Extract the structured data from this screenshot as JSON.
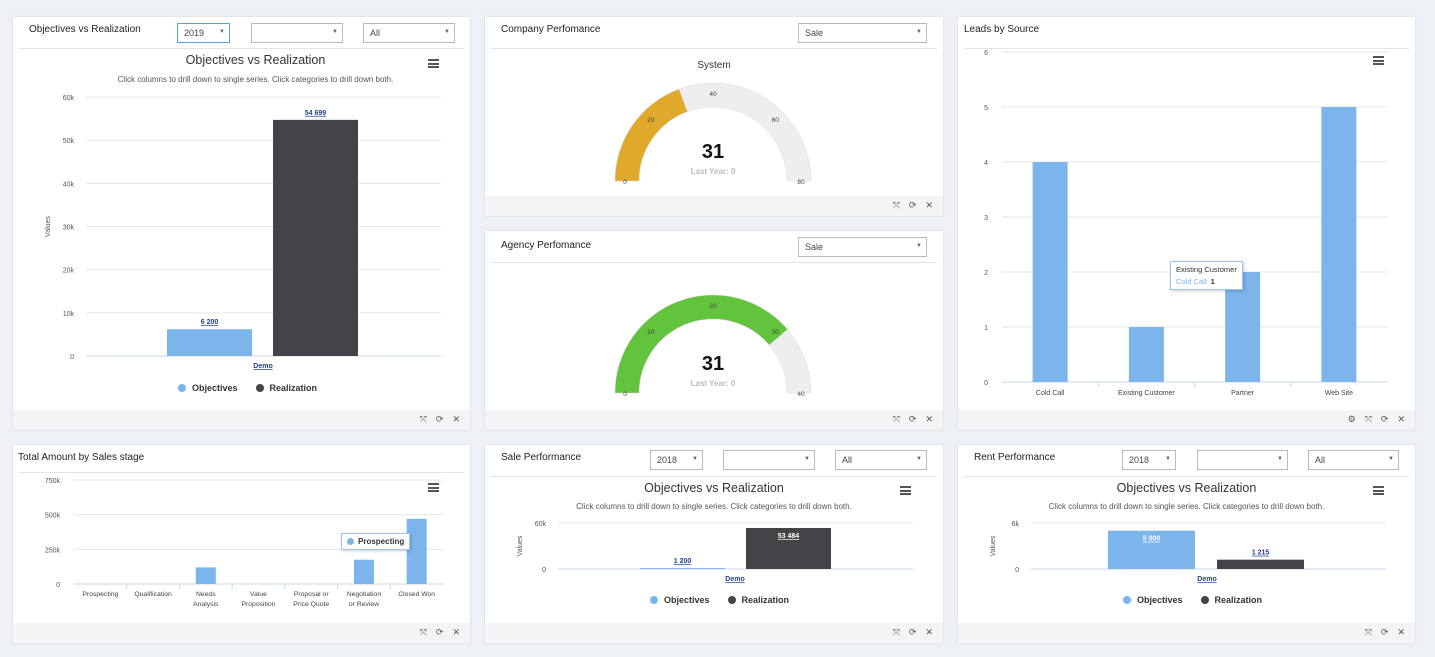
{
  "colors": {
    "objectives": "#7cb5ec",
    "realization": "#434348",
    "gauge_company": "#e0a92c",
    "gauge_agency": "#62c33c",
    "gauge_bg": "#eeeeee",
    "leads_bar": "#7cb5ec"
  },
  "icons": {
    "expand": "expand-icon",
    "refresh": "refresh-icon",
    "close": "close-icon",
    "settings": "gear-icon",
    "menu": "hamburger-menu-icon"
  },
  "footer_icons": {
    "expand": "⤧",
    "refresh": "⟳",
    "close": "✕",
    "settings": "⚙"
  },
  "objectives_panel": {
    "title": "Objectives vs Realization",
    "year": "2019",
    "filter2": "",
    "filter3": "All",
    "chart_title": "Objectives vs Realization",
    "chart_subtitle": "Click columns to drill down to single series. Click categories to drill down both.",
    "ylabel": "Values",
    "yticks": [
      "60k",
      "50k",
      "40k",
      "30k",
      "20k",
      "10k",
      "0"
    ],
    "category": "Demo",
    "legend": [
      "Objectives",
      "Realization"
    ],
    "label_objectives": "6 200",
    "label_realization": "54 699"
  },
  "company_panel": {
    "title": "Company Perfomance",
    "select": "Sale",
    "gauge_title": "System",
    "value": "31",
    "last_year": "Last Year: 0",
    "ticks": [
      "0",
      "20",
      "40",
      "60",
      "80"
    ]
  },
  "agency_panel": {
    "title": "Agency Perfomance",
    "select": "Sale",
    "value": "31",
    "last_year": "Last Year: 0",
    "ticks": [
      "0",
      "10",
      "20",
      "30",
      "40"
    ]
  },
  "leads_panel": {
    "title": "Leads by Source",
    "yticks": [
      "6",
      "5",
      "4",
      "3",
      "2",
      "1",
      "0"
    ],
    "categories": [
      "Cold Call",
      "Existing Customer",
      "Partner",
      "Web Site"
    ],
    "tooltip_title": "Existing Customer",
    "tooltip_series": "Cold Call:",
    "tooltip_value": "1"
  },
  "sales_stage_panel": {
    "title": "Total Amount by Sales stage",
    "yticks": [
      "750k",
      "500k",
      "250k",
      "0"
    ],
    "categories": [
      [
        "Prospecting"
      ],
      [
        "Qualification"
      ],
      [
        "Needs",
        "Analysis"
      ],
      [
        "Value",
        "Proposition"
      ],
      [
        "Proposal or",
        "Price Quote"
      ],
      [
        "Negotiation",
        "or Review"
      ],
      [
        "Closed Won"
      ]
    ],
    "tooltip": "Prospecting"
  },
  "sale_perf_panel": {
    "title": "Sale Performance",
    "year": "2018",
    "filter2": "",
    "filter3": "All",
    "chart_title": "Objectives vs Realization",
    "chart_subtitle": "Click columns to drill down to single series. Click categories to drill down both.",
    "ylabel": "Values",
    "yticks": [
      "60k",
      "0"
    ],
    "category": "Demo",
    "legend": [
      "Objectives",
      "Realization"
    ],
    "label_objectives": "1 200",
    "label_realization": "53 484"
  },
  "rent_perf_panel": {
    "title": "Rent Performance",
    "year": "2018",
    "filter2": "",
    "filter3": "All",
    "chart_title": "Objectives vs Realization",
    "chart_subtitle": "Click columns to drill down to single series. Click categories to drill down both.",
    "ylabel": "Values",
    "yticks": [
      "6k",
      "0"
    ],
    "category": "Demo",
    "legend": [
      "Objectives",
      "Realization"
    ],
    "label_objectives": "5 000",
    "label_realization": "1 215"
  },
  "chart_data": [
    {
      "type": "bar",
      "title": "Objectives vs Realization",
      "subtitle": "Click columns to drill down to single series. Click categories to drill down both.",
      "categories": [
        "Demo"
      ],
      "series": [
        {
          "name": "Objectives",
          "values": [
            6200
          ]
        },
        {
          "name": "Realization",
          "values": [
            54699
          ]
        }
      ],
      "ylabel": "Values",
      "ylim": [
        0,
        60000
      ],
      "grid": true,
      "legend": "bottom"
    },
    {
      "type": "gauge",
      "title": "System",
      "value": 31,
      "range": [
        0,
        80
      ],
      "note": "Last Year: 0"
    },
    {
      "type": "gauge",
      "value": 31,
      "range": [
        0,
        40
      ],
      "note": "Last Year: 0"
    },
    {
      "type": "bar",
      "categories": [
        "Cold Call",
        "Existing Customer",
        "Partner",
        "Web Site"
      ],
      "values": [
        4,
        1,
        2,
        5
      ],
      "ylim": [
        0,
        6
      ],
      "grid": true
    },
    {
      "type": "bar",
      "categories": [
        "Prospecting",
        "Qualification",
        "Needs Analysis",
        "Value Proposition",
        "Proposal or Price Quote",
        "Negotiation or Review",
        "Closed Won"
      ],
      "values": [
        0,
        0,
        120000,
        0,
        0,
        175000,
        470000
      ],
      "ylim": [
        0,
        750000
      ],
      "grid": true
    },
    {
      "type": "bar",
      "title": "Objectives vs Realization",
      "subtitle": "Click columns to drill down to single series. Click categories to drill down both.",
      "categories": [
        "Demo"
      ],
      "series": [
        {
          "name": "Objectives",
          "values": [
            1200
          ]
        },
        {
          "name": "Realization",
          "values": [
            53484
          ]
        }
      ],
      "ylabel": "Values",
      "ylim": [
        0,
        60000
      ],
      "legend": "bottom"
    },
    {
      "type": "bar",
      "title": "Objectives vs Realization",
      "subtitle": "Click columns to drill down to single series. Click categories to drill down both.",
      "categories": [
        "Demo"
      ],
      "series": [
        {
          "name": "Objectives",
          "values": [
            5000
          ]
        },
        {
          "name": "Realization",
          "values": [
            1215
          ]
        }
      ],
      "ylabel": "Values",
      "ylim": [
        0,
        6000
      ],
      "legend": "bottom"
    }
  ]
}
